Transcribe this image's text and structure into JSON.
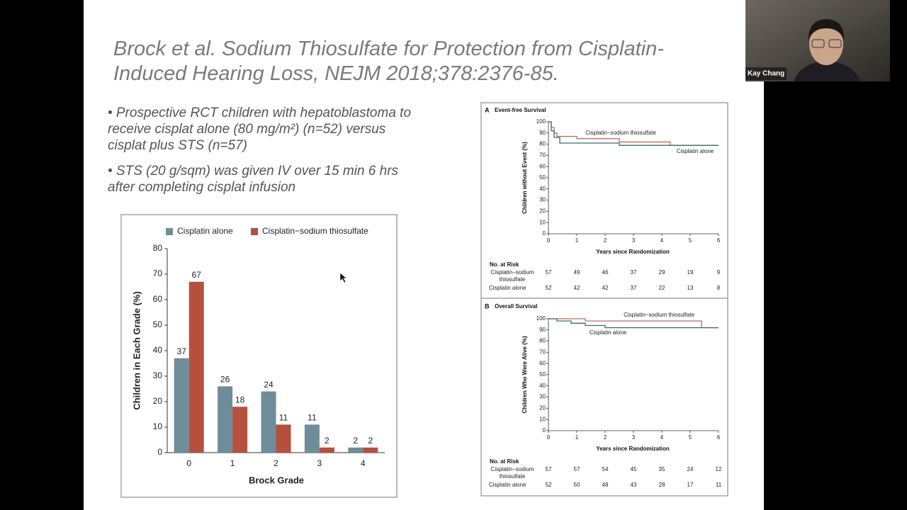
{
  "meeting": {
    "participant_name": "Kay Chang"
  },
  "slide": {
    "title_lines": [
      "Brock et al. Sodium Thiosulfate for Protection from Cisplatin-",
      "Induced Hearing Loss, NEJM 2018;378:2376-85."
    ],
    "bullets": [
      {
        "lines": [
          "Prospective RCT children with hepatoblastoma to",
          "receive cisplat alone (80 mg/m²) (n=52) versus",
          "cisplat plus STS (n=57)"
        ]
      },
      {
        "lines": [
          "STS (20 g/sqm) was given IV over 15 min 6 hrs",
          "after completing cisplat infusion"
        ]
      }
    ]
  },
  "chart_data": [
    {
      "type": "bar",
      "xlabel": "Brock Grade",
      "ylabel": "Children in Each Grade (%)",
      "categories": [
        "0",
        "1",
        "2",
        "3",
        "4"
      ],
      "series": [
        {
          "name": "Cisplatin alone",
          "color": "#6f8d98",
          "values": [
            37,
            26,
            24,
            11,
            2
          ]
        },
        {
          "name": "Cisplatin−sodium thiosulfate",
          "color": "#b5503f",
          "values": [
            67,
            18,
            11,
            2,
            2
          ]
        }
      ],
      "ylim": [
        0,
        80
      ],
      "yticks": [
        0,
        10,
        20,
        30,
        40,
        50,
        60,
        70,
        80
      ],
      "legend": "top"
    },
    {
      "type": "line",
      "panel": "A",
      "title": "Event-free Survival",
      "xlabel": "Years since Randomization",
      "ylabel": "Children without Event (%)",
      "xlim": [
        0,
        6
      ],
      "xticks": [
        0,
        1,
        2,
        3,
        4,
        5,
        6
      ],
      "ylim": [
        0,
        100
      ],
      "yticks": [
        0,
        10,
        20,
        30,
        40,
        50,
        60,
        70,
        80,
        90,
        100
      ],
      "risk_table_title": "No. at Risk",
      "series": [
        {
          "name": "Cisplatin−sodium thiosulfate",
          "color": "#b8705f",
          "x": [
            0,
            0.1,
            0.1,
            0.2,
            0.2,
            0.3,
            0.3,
            1,
            1,
            2.5,
            2.5,
            4.3,
            4.3,
            6
          ],
          "values": [
            100,
            100,
            95,
            95,
            90,
            90,
            87,
            87,
            85,
            85,
            82,
            82,
            79,
            79
          ],
          "at_risk": [
            57,
            49,
            46,
            37,
            29,
            19,
            9
          ]
        },
        {
          "name": "Cisplatin alone",
          "color": "#3e6b6b",
          "x": [
            0,
            0.1,
            0.1,
            0.2,
            0.2,
            0.4,
            0.4,
            2.5,
            2.5,
            6
          ],
          "values": [
            100,
            100,
            92,
            92,
            86,
            86,
            81,
            81,
            79,
            79
          ],
          "at_risk": [
            52,
            42,
            42,
            37,
            22,
            13,
            8
          ]
        }
      ]
    },
    {
      "type": "line",
      "panel": "B",
      "title": "Overall Survival",
      "xlabel": "Years since Randomization",
      "ylabel": "Children Who Were Alive (%)",
      "xlim": [
        0,
        6
      ],
      "xticks": [
        0,
        1,
        2,
        3,
        4,
        5,
        6
      ],
      "ylim": [
        0,
        100
      ],
      "yticks": [
        0,
        10,
        20,
        30,
        40,
        50,
        60,
        70,
        80,
        90,
        100
      ],
      "risk_table_title": "No. at Risk",
      "series": [
        {
          "name": "Cisplatin−sodium thiosulfate",
          "color": "#b8705f",
          "x": [
            0,
            1.3,
            1.3,
            5.4,
            5.4,
            6
          ],
          "values": [
            100,
            100,
            98,
            98,
            92,
            92
          ],
          "at_risk": [
            57,
            57,
            54,
            45,
            35,
            24,
            12
          ]
        },
        {
          "name": "Cisplatin alone",
          "color": "#3e6b6b",
          "x": [
            0,
            0.3,
            0.3,
            0.8,
            0.8,
            1.3,
            1.3,
            2,
            2,
            6
          ],
          "values": [
            100,
            100,
            98,
            98,
            96,
            96,
            94,
            94,
            92,
            92
          ],
          "at_risk": [
            52,
            50,
            48,
            43,
            28,
            17,
            11
          ]
        }
      ]
    }
  ]
}
